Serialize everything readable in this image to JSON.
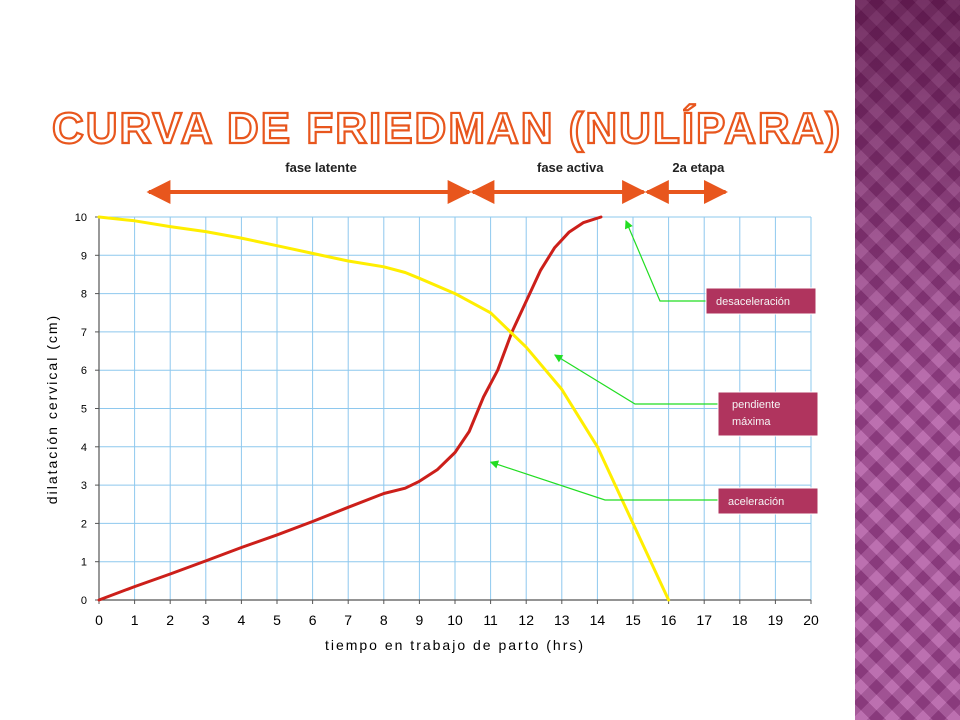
{
  "slide": {
    "title": "CURVA DE FRIEDMAN (NULÍPARA)",
    "title_color": "#e8561d",
    "side_panel_color": "#a9489a"
  },
  "chart_data": {
    "type": "line",
    "x": [
      0,
      1,
      2,
      3,
      4,
      5,
      6,
      7,
      8,
      9,
      10,
      11,
      12,
      13,
      14,
      15,
      16,
      17,
      18,
      19,
      20
    ],
    "xlim": [
      0,
      20
    ],
    "ylim": [
      0,
      10
    ],
    "y_ticks": [
      0,
      1,
      2,
      3,
      4,
      5,
      6,
      7,
      8,
      9,
      10
    ],
    "x_ticks": [
      0,
      1,
      2,
      3,
      4,
      5,
      6,
      7,
      8,
      9,
      10,
      11,
      12,
      13,
      14,
      15,
      16,
      17,
      18,
      19,
      20
    ],
    "xlabel": "tiempo en trabajo de parto (hrs)",
    "ylabel": "dilatación cervical (cm)",
    "grid": true,
    "series": [
      {
        "color": "#cc1f1a",
        "points": [
          [
            0,
            0
          ],
          [
            1,
            0.35
          ],
          [
            2,
            0.68
          ],
          [
            3,
            1.02
          ],
          [
            4,
            1.37
          ],
          [
            5,
            1.7
          ],
          [
            6,
            2.05
          ],
          [
            7,
            2.42
          ],
          [
            8,
            2.78
          ],
          [
            8.6,
            2.92
          ],
          [
            9,
            3.1
          ],
          [
            9.5,
            3.4
          ],
          [
            10,
            3.85
          ],
          [
            10.4,
            4.4
          ],
          [
            10.8,
            5.3
          ],
          [
            11.2,
            6.0
          ],
          [
            11.6,
            7.0
          ],
          [
            12,
            7.8
          ],
          [
            12.4,
            8.6
          ],
          [
            12.8,
            9.2
          ],
          [
            13.2,
            9.6
          ],
          [
            13.6,
            9.85
          ],
          [
            14.1,
            10
          ]
        ]
      },
      {
        "color": "#ffee00",
        "points": [
          [
            0,
            10
          ],
          [
            1,
            9.9
          ],
          [
            2,
            9.75
          ],
          [
            3,
            9.62
          ],
          [
            4,
            9.45
          ],
          [
            5,
            9.25
          ],
          [
            6,
            9.05
          ],
          [
            7,
            8.85
          ],
          [
            8,
            8.7
          ],
          [
            8.6,
            8.55
          ],
          [
            9,
            8.4
          ],
          [
            10,
            8.0
          ],
          [
            11,
            7.5
          ],
          [
            12,
            6.6
          ],
          [
            13,
            5.5
          ],
          [
            14,
            4.0
          ],
          [
            15,
            2.0
          ],
          [
            16,
            0
          ]
        ]
      }
    ],
    "phases": [
      {
        "label": "fase latente",
        "from": 1.4,
        "to": 10.4
      },
      {
        "label": "fase activa",
        "from": 10.5,
        "to": 15.3
      },
      {
        "label": "2a etapa",
        "from": 15.4,
        "to": 17.6
      }
    ],
    "phase_color": "#e8561d",
    "annotations": [
      {
        "text": "desaceleración",
        "target": [
          14.8,
          9.9
        ]
      },
      {
        "text": "pendiente máxima",
        "target": [
          12.8,
          6.4
        ]
      },
      {
        "text": "aceleración",
        "target": [
          11.0,
          3.6
        ]
      }
    ],
    "annotation_line_color": "#22dd22"
  }
}
